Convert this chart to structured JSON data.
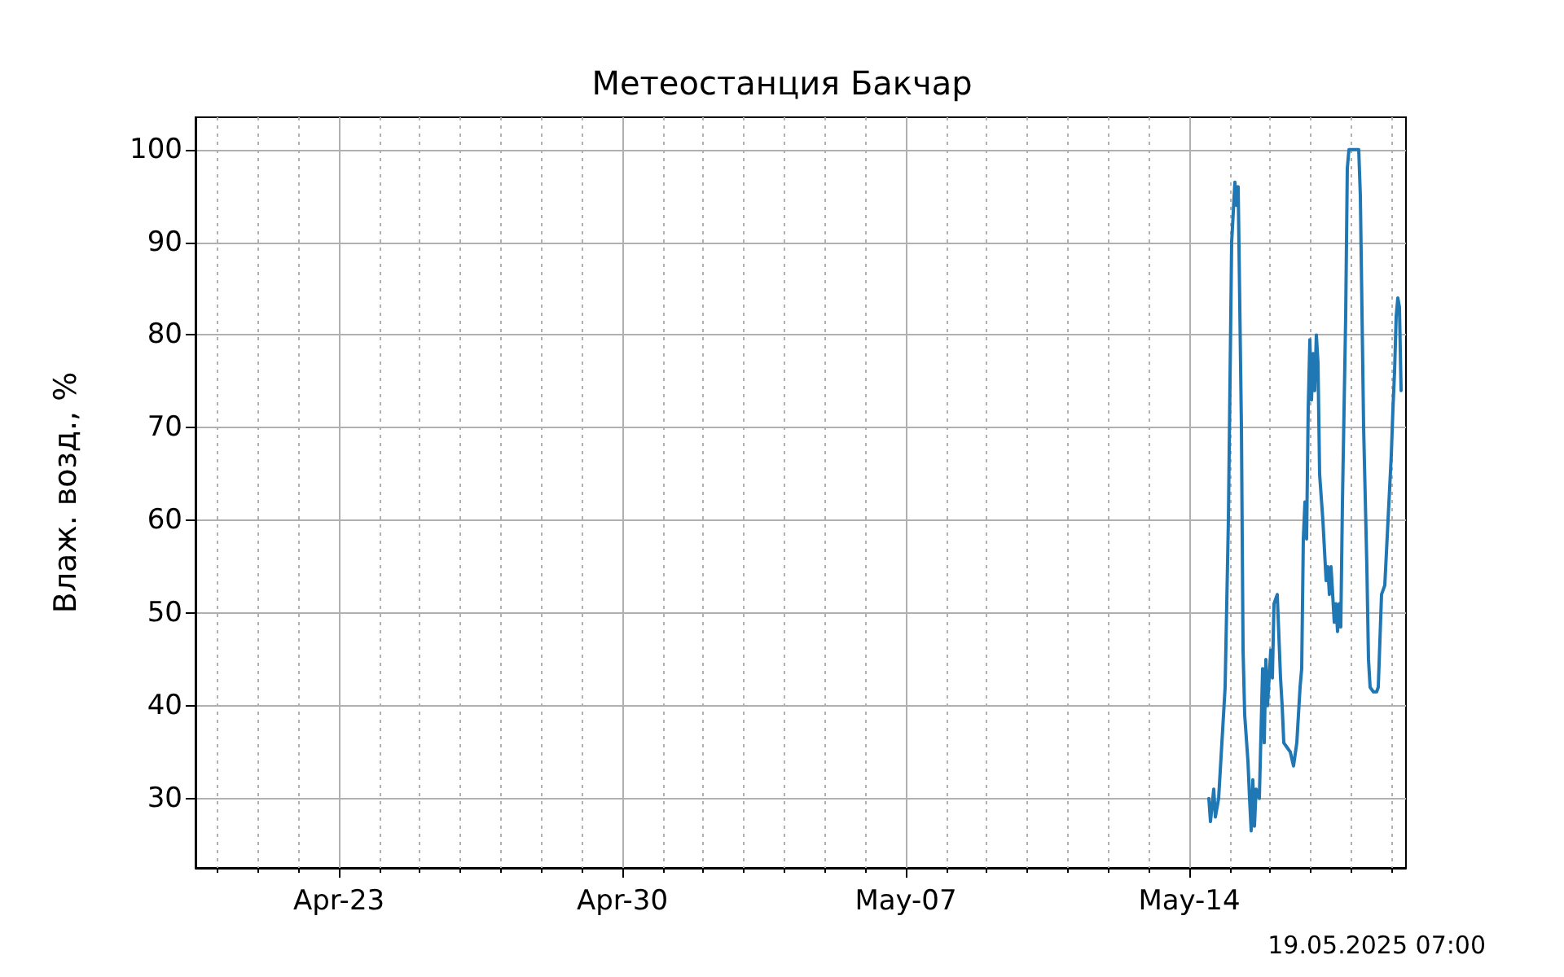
{
  "chart_data": {
    "type": "line",
    "title": "Метеостанция Бакчар",
    "ylabel": "Влаж. возд., %",
    "annotations": [
      "19.05.2025 07:00"
    ],
    "series": [
      {
        "color": "#1f77b4",
        "x": [
          "2025-05-14T11:35",
          "2025-05-14T12:33",
          "2025-05-14T14:29",
          "2025-05-14T15:27",
          "2025-05-14T17:23",
          "2025-05-14T19:19",
          "2025-05-14T21:14",
          "2025-05-14T23:10",
          "2025-05-15T01:06",
          "2025-05-15T03:02",
          "2025-05-15T04:00",
          "2025-05-15T04:58",
          "2025-05-15T06:54",
          "2025-05-15T07:52",
          "2025-05-15T08:50",
          "2025-05-15T10:46",
          "2025-05-15T11:43",
          "2025-05-15T12:41",
          "2025-05-15T13:39",
          "2025-05-15T14:37",
          "2025-05-15T15:35",
          "2025-05-15T17:31",
          "2025-05-15T19:27",
          "2025-05-15T20:25",
          "2025-05-15T21:23",
          "2025-05-15T22:20",
          "2025-05-16T00:17",
          "2025-05-16T01:14",
          "2025-05-16T02:12",
          "2025-05-16T04:08",
          "2025-05-16T06:04",
          "2025-05-16T07:02",
          "2025-05-16T08:00",
          "2025-05-16T09:56",
          "2025-05-16T11:52",
          "2025-05-16T13:47",
          "2025-05-16T15:43",
          "2025-05-16T17:39",
          "2025-05-16T18:37",
          "2025-05-16T19:35",
          "2025-05-16T20:33",
          "2025-05-16T21:31",
          "2025-05-16T22:29",
          "2025-05-16T23:27",
          "2025-05-17T00:25",
          "2025-05-17T01:23",
          "2025-05-17T02:20",
          "2025-05-17T03:18",
          "2025-05-17T04:17",
          "2025-05-17T05:14",
          "2025-05-17T07:10",
          "2025-05-17T09:06",
          "2025-05-17T10:04",
          "2025-05-17T11:02",
          "2025-05-17T12:00",
          "2025-05-17T12:58",
          "2025-05-17T13:56",
          "2025-05-17T14:54",
          "2025-05-17T15:52",
          "2025-05-17T16:50",
          "2025-05-17T17:47",
          "2025-05-17T18:46",
          "2025-05-17T20:41",
          "2025-05-17T21:39",
          "2025-05-17T22:37",
          "2025-05-18T04:25",
          "2025-05-18T05:23",
          "2025-05-18T07:19",
          "2025-05-18T09:14",
          "2025-05-18T10:12",
          "2025-05-18T11:10",
          "2025-05-18T13:06",
          "2025-05-18T15:02",
          "2025-05-18T16:00",
          "2025-05-18T17:56",
          "2025-05-18T19:52",
          "2025-05-18T21:47",
          "2025-05-18T23:43",
          "2025-05-19T00:41",
          "2025-05-19T01:39",
          "2025-05-19T02:37",
          "2025-05-19T03:35",
          "2025-05-19T04:33",
          "2025-05-19T05:31"
        ],
        "values": [
          30,
          27.5,
          31,
          28,
          30,
          36,
          42,
          60,
          90,
          96.5,
          94,
          96,
          70,
          46,
          39,
          34,
          30,
          26.5,
          32,
          27,
          31,
          30,
          44,
          36,
          45,
          40,
          46,
          43,
          51,
          52,
          43,
          40,
          36,
          35.5,
          35,
          33.5,
          36,
          42,
          44,
          58,
          62,
          58,
          72,
          79.5,
          73,
          78,
          74,
          80,
          77,
          65,
          60,
          53.5,
          55,
          52,
          55,
          52,
          49,
          51,
          48,
          51,
          48.5,
          62,
          82,
          98,
          100,
          100,
          95,
          70,
          55,
          45,
          42,
          41.5,
          41.5,
          42,
          52,
          53,
          60,
          67,
          72,
          76,
          82,
          84,
          83,
          74
        ]
      }
    ],
    "xlim": [
      "2025-04-19T11:00",
      "2025-05-19T08:25"
    ],
    "xticks": [
      {
        "value": "2025-04-23",
        "label": "Apr-23"
      },
      {
        "value": "2025-04-30",
        "label": "Apr-30"
      },
      {
        "value": "2025-05-07",
        "label": "May-07"
      },
      {
        "value": "2025-05-14",
        "label": "May-14"
      }
    ],
    "ylim": [
      22.5,
      103.5
    ],
    "yticks": [
      30,
      40,
      50,
      60,
      70,
      80,
      90,
      100
    ],
    "grid": true
  }
}
